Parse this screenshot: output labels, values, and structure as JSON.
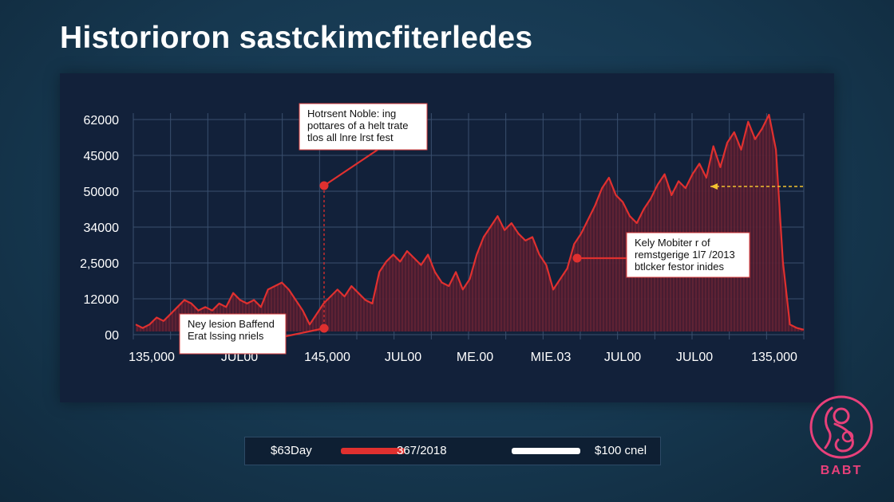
{
  "title": "Historioron sastckimcfiterledes",
  "chart_data": {
    "type": "area",
    "y_tick_labels": [
      "62000",
      "45000",
      "50000",
      "34000",
      "2,5000",
      "12000",
      "00"
    ],
    "x_tick_labels": [
      "135,000",
      "JUL00",
      "145,000",
      "JUL00",
      "ME.00",
      "MIE.03",
      "JUL00",
      "JUL00",
      "135,000"
    ],
    "series": [
      {
        "color": "#e0302f",
        "values": [
          2,
          1,
          2,
          4,
          3,
          5,
          7,
          9,
          8,
          6,
          7,
          6,
          8,
          7,
          11,
          9,
          8,
          9,
          7,
          12,
          13,
          14,
          12,
          9,
          6,
          2,
          5,
          8,
          10,
          12,
          10,
          13,
          11,
          9,
          8,
          17,
          20,
          22,
          20,
          23,
          21,
          19,
          22,
          17,
          14,
          13,
          17,
          12,
          15,
          22,
          27,
          30,
          33,
          29,
          31,
          28,
          26,
          27,
          22,
          19,
          12,
          15,
          18,
          25,
          28,
          32,
          36,
          41,
          44,
          39,
          37,
          33,
          31,
          35,
          38,
          42,
          45,
          39,
          43,
          41,
          45,
          48,
          44,
          53,
          47,
          54,
          57,
          52,
          60,
          55,
          58,
          62,
          52,
          20,
          2,
          1,
          0.5
        ]
      }
    ],
    "annotations": [
      {
        "lines": [
          "Hotrsent Noble: ing",
          "pottares of a helt trate",
          "tlos all lnre lrst fest"
        ]
      },
      {
        "lines": [
          "Kely Mobiter r of",
          "remstgerige 1l7 /2013",
          "btlcker festor inides"
        ]
      },
      {
        "lines": [
          "Ney lesion Baffend",
          "Erat lssing nriels"
        ]
      }
    ],
    "grid": true
  },
  "legend": {
    "items": [
      {
        "label": "$63Day",
        "color": ""
      },
      {
        "label": "367/2018",
        "color": "#e0302f"
      },
      {
        "label": "$100 cnel",
        "color": "#ffffff"
      }
    ]
  },
  "logo": {
    "text": "BABT",
    "icon": "mother-child-icon",
    "color": "#e8407a"
  },
  "colors": {
    "accent": "#e0302f",
    "target_line": "#f2c230",
    "panel": "#12213a"
  }
}
